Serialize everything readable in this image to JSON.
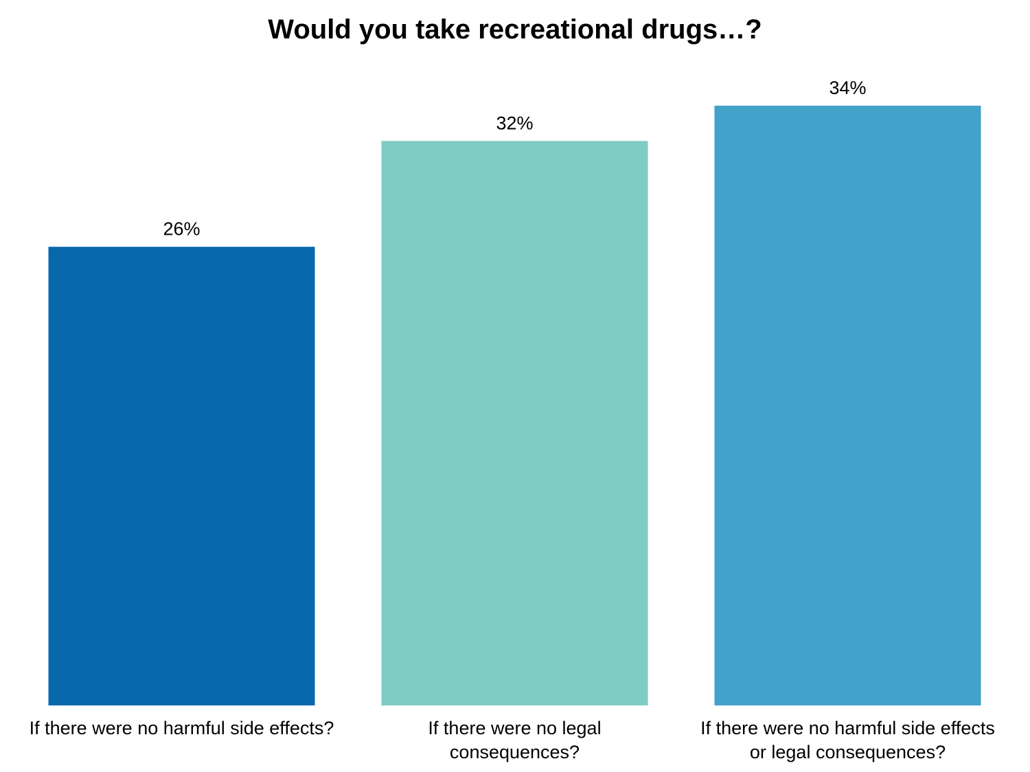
{
  "chart_data": {
    "type": "bar",
    "title": "Would you take recreational drugs…?",
    "xlabel": "",
    "ylabel": "",
    "categories": [
      [
        "If there were no harmful side effects?"
      ],
      [
        "If there were no legal",
        "consequences?"
      ],
      [
        "If there were no harmful side effects",
        "or legal consequences?"
      ]
    ],
    "values": [
      26,
      32,
      34
    ],
    "value_labels": [
      "26%",
      "32%",
      "34%"
    ],
    "ylim": [
      0,
      34
    ],
    "grid": false,
    "legend": "none",
    "colors": [
      "#0868AC",
      "#7ECCC4",
      "#43A2CA"
    ]
  }
}
